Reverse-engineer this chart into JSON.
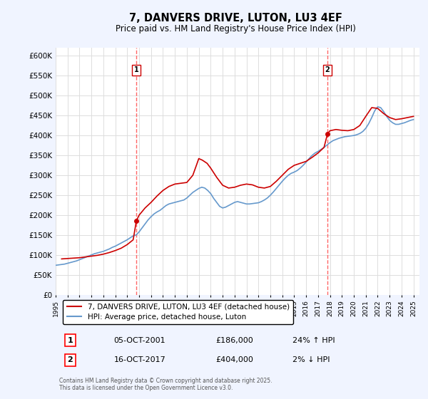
{
  "title": "7, DANVERS DRIVE, LUTON, LU3 4EF",
  "subtitle": "Price paid vs. HM Land Registry's House Price Index (HPI)",
  "bg_color": "#f0f4ff",
  "plot_bg_color": "#ffffff",
  "ylabel": "",
  "xlabel": "",
  "ylim": [
    0,
    620000
  ],
  "yticks": [
    0,
    50000,
    100000,
    150000,
    200000,
    250000,
    300000,
    350000,
    400000,
    450000,
    500000,
    550000,
    600000
  ],
  "ytick_labels": [
    "£0",
    "£50K",
    "£100K",
    "£150K",
    "£200K",
    "£250K",
    "£300K",
    "£350K",
    "£400K",
    "£450K",
    "£500K",
    "£550K",
    "£600K"
  ],
  "xlim": [
    1995,
    2025.5
  ],
  "transactions": [
    {
      "year": 2001.77,
      "price": 186000,
      "label": "1"
    },
    {
      "year": 2017.79,
      "price": 404000,
      "label": "2"
    }
  ],
  "transaction_info": [
    {
      "num": "1",
      "date": "05-OCT-2001",
      "price": "£186,000",
      "hpi": "24% ↑ HPI"
    },
    {
      "num": "2",
      "date": "16-OCT-2017",
      "price": "£404,000",
      "hpi": "2% ↓ HPI"
    }
  ],
  "hpi_color": "#6699cc",
  "price_color": "#cc0000",
  "vline_color": "#ff6666",
  "legend_label_price": "7, DANVERS DRIVE, LUTON, LU3 4EF (detached house)",
  "legend_label_hpi": "HPI: Average price, detached house, Luton",
  "footer": "Contains HM Land Registry data © Crown copyright and database right 2025.\nThis data is licensed under the Open Government Licence v3.0.",
  "hpi_x": [
    1995,
    1995.25,
    1995.5,
    1995.75,
    1996,
    1996.25,
    1996.5,
    1996.75,
    1997,
    1997.25,
    1997.5,
    1997.75,
    1998,
    1998.25,
    1998.5,
    1998.75,
    1999,
    1999.25,
    1999.5,
    1999.75,
    2000,
    2000.25,
    2000.5,
    2000.75,
    2001,
    2001.25,
    2001.5,
    2001.75,
    2002,
    2002.25,
    2002.5,
    2002.75,
    2003,
    2003.25,
    2003.5,
    2003.75,
    2004,
    2004.25,
    2004.5,
    2004.75,
    2005,
    2005.25,
    2005.5,
    2005.75,
    2006,
    2006.25,
    2006.5,
    2006.75,
    2007,
    2007.25,
    2007.5,
    2007.75,
    2008,
    2008.25,
    2008.5,
    2008.75,
    2009,
    2009.25,
    2009.5,
    2009.75,
    2010,
    2010.25,
    2010.5,
    2010.75,
    2011,
    2011.25,
    2011.5,
    2011.75,
    2012,
    2012.25,
    2012.5,
    2012.75,
    2013,
    2013.25,
    2013.5,
    2013.75,
    2014,
    2014.25,
    2014.5,
    2014.75,
    2015,
    2015.25,
    2015.5,
    2015.75,
    2016,
    2016.25,
    2016.5,
    2016.75,
    2017,
    2017.25,
    2017.5,
    2017.75,
    2018,
    2018.25,
    2018.5,
    2018.75,
    2019,
    2019.25,
    2019.5,
    2019.75,
    2020,
    2020.25,
    2020.5,
    2020.75,
    2021,
    2021.25,
    2021.5,
    2021.75,
    2022,
    2022.25,
    2022.5,
    2022.75,
    2023,
    2023.25,
    2023.5,
    2023.75,
    2024,
    2024.25,
    2024.5,
    2024.75,
    2025
  ],
  "hpi_y": [
    74000,
    75000,
    76000,
    77000,
    79000,
    81000,
    83000,
    85000,
    88000,
    91000,
    94000,
    97000,
    100000,
    103000,
    105000,
    107000,
    109000,
    112000,
    115000,
    119000,
    122000,
    126000,
    130000,
    134000,
    138000,
    143000,
    148000,
    150000,
    158000,
    168000,
    178000,
    188000,
    196000,
    203000,
    208000,
    212000,
    218000,
    224000,
    228000,
    230000,
    232000,
    234000,
    236000,
    238000,
    243000,
    250000,
    257000,
    262000,
    267000,
    270000,
    268000,
    262000,
    254000,
    242000,
    232000,
    222000,
    218000,
    220000,
    224000,
    228000,
    232000,
    234000,
    232000,
    230000,
    228000,
    228000,
    229000,
    230000,
    231000,
    234000,
    238000,
    243000,
    250000,
    258000,
    267000,
    276000,
    285000,
    293000,
    300000,
    305000,
    308000,
    312000,
    318000,
    325000,
    333000,
    342000,
    350000,
    356000,
    360000,
    365000,
    370000,
    376000,
    382000,
    387000,
    390000,
    393000,
    395000,
    397000,
    398000,
    399000,
    400000,
    402000,
    405000,
    410000,
    418000,
    430000,
    445000,
    462000,
    472000,
    470000,
    460000,
    448000,
    438000,
    432000,
    428000,
    428000,
    430000,
    432000,
    435000,
    438000,
    440000
  ],
  "price_x": [
    1995.5,
    1996,
    1996.5,
    1997,
    1997.5,
    1998,
    1998.5,
    1999,
    1999.5,
    2000,
    2000.5,
    2001,
    2001.5,
    2001.77,
    2002,
    2002.5,
    2003,
    2003.5,
    2004,
    2004.5,
    2005,
    2005.5,
    2006,
    2006.5,
    2006.8,
    2007,
    2007.3,
    2007.7,
    2008,
    2008.5,
    2009,
    2009.5,
    2010,
    2010.5,
    2011,
    2011.5,
    2012,
    2012.5,
    2013,
    2013.5,
    2014,
    2014.5,
    2015,
    2015.5,
    2016,
    2016.5,
    2017,
    2017.5,
    2017.79,
    2018,
    2018.5,
    2019,
    2019.5,
    2020,
    2020.5,
    2021,
    2021.5,
    2022,
    2022.5,
    2023,
    2023.5,
    2024,
    2024.5,
    2025
  ],
  "price_y": [
    90000,
    91000,
    92000,
    93000,
    95000,
    97000,
    99000,
    102000,
    106000,
    111000,
    117000,
    126000,
    138000,
    186000,
    200000,
    218000,
    232000,
    248000,
    262000,
    272000,
    278000,
    280000,
    282000,
    300000,
    325000,
    342000,
    338000,
    330000,
    318000,
    295000,
    275000,
    268000,
    270000,
    275000,
    278000,
    276000,
    270000,
    268000,
    272000,
    285000,
    300000,
    315000,
    325000,
    330000,
    335000,
    345000,
    356000,
    370000,
    404000,
    412000,
    415000,
    413000,
    412000,
    415000,
    425000,
    448000,
    470000,
    468000,
    455000,
    445000,
    440000,
    442000,
    445000,
    448000
  ]
}
